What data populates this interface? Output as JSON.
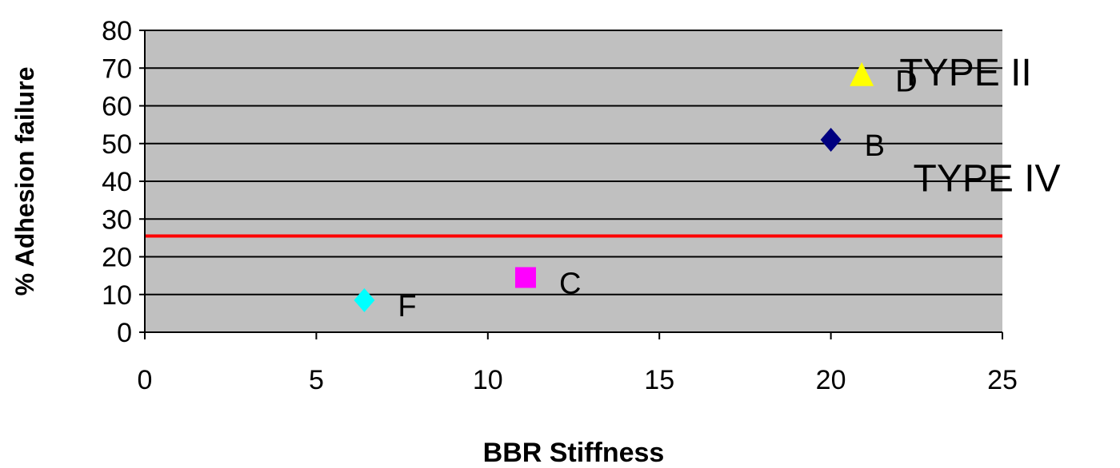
{
  "chart_data": {
    "type": "scatter",
    "xlabel": "BBR Stiffness",
    "ylabel": "% Adhesion failure",
    "xlim": [
      0,
      25
    ],
    "ylim": [
      0,
      80
    ],
    "x_ticks": [
      "0",
      "5",
      "10",
      "15",
      "20",
      "25"
    ],
    "y_ticks": [
      "0",
      "10",
      "20",
      "30",
      "40",
      "50",
      "60",
      "70",
      "80"
    ],
    "grid": "horizontal",
    "plot_background": "#c0c0c0",
    "threshold": {
      "y": 25.5,
      "color": "#ff0000"
    },
    "points": [
      {
        "label": "F",
        "x": 6.4,
        "y": 8.5,
        "marker": "diamond",
        "color": "#00ffff"
      },
      {
        "label": "C",
        "x": 11.1,
        "y": 14.5,
        "marker": "square",
        "color": "#ff00ff"
      },
      {
        "label": "B",
        "x": 20.0,
        "y": 51.0,
        "marker": "diamond",
        "color": "#000080"
      },
      {
        "label": "D",
        "x": 20.9,
        "y": 68.0,
        "marker": "triangle",
        "color": "#ffff00"
      }
    ],
    "annotations": [
      {
        "text": "TYPE II",
        "x": 22.0,
        "y": 69.0
      },
      {
        "text": "TYPE IV",
        "x": 22.4,
        "y": 41.0
      }
    ]
  }
}
